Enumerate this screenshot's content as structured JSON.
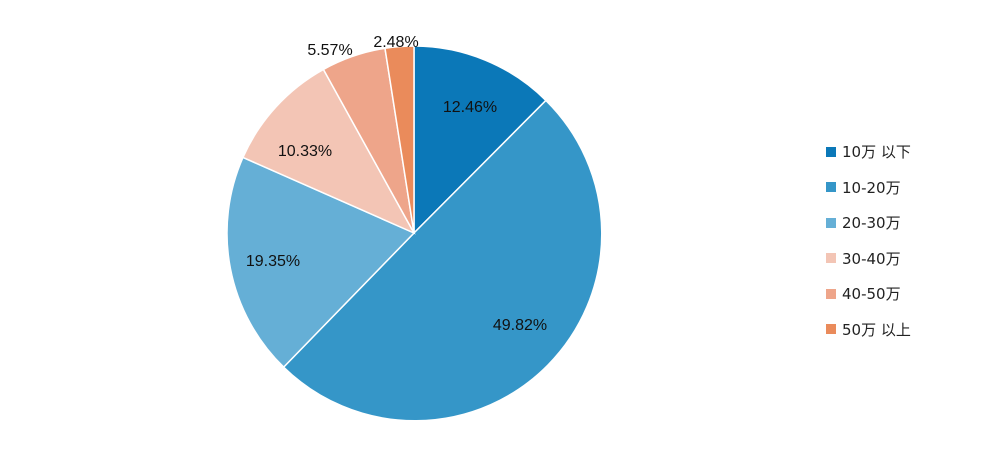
{
  "chart_data": {
    "type": "pie",
    "title": "",
    "start": "12-o'clock",
    "direction": "clockwise",
    "legend_placement": "right",
    "slices": [
      {
        "label": "10万 以下",
        "value": 12.46,
        "display": "12.46%",
        "color": "#0b78b8"
      },
      {
        "label": "10-20万",
        "value": 49.82,
        "display": "49.82%",
        "color": "#3596c8"
      },
      {
        "label": "20-30万",
        "value": 19.35,
        "display": "19.35%",
        "color": "#65afd6"
      },
      {
        "label": "30-40万",
        "value": 10.33,
        "display": "10.33%",
        "color": "#f3c5b5"
      },
      {
        "label": "40-50万",
        "value": 5.57,
        "display": "5.57%",
        "color": "#eea58a"
      },
      {
        "label": "50万 以上",
        "value": 2.48,
        "display": "2.48%",
        "color": "#ea8b5b"
      }
    ]
  }
}
